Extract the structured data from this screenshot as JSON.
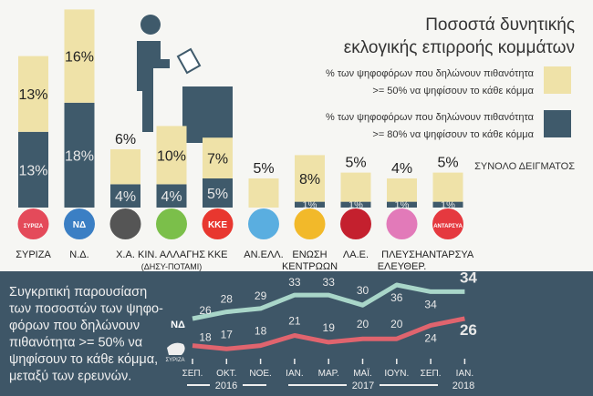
{
  "chart_data": [
    {
      "type": "bar",
      "stacked": true,
      "title": "Ποσοστά δυνητικής εκλογικής επιρροής κομμάτων",
      "subtitle": "ΣΥΝΟΛΟ ΔΕΙΓΜΑΤΟΣ",
      "categories": [
        "ΣΥΡΙΖΑ",
        "Ν.Δ.",
        "Χ.Α.",
        "ΚΙΝ. ΑΛΛΑΓΗΣ",
        "ΚΚΕ",
        "ΑΝ.ΕΛΛ.",
        "ΕΝΩΣΗ",
        "ΛΑ.Ε.",
        "ΠΛΕΥΣΗ",
        "ΑΝΤΑΡΣΥΑ"
      ],
      "category_sublabels": [
        "",
        "",
        "",
        "(ΔΗΣΥ-ΠΟΤΑΜΙ)",
        "",
        "",
        "ΚΕΝΤΡΩΩΝ",
        "",
        "ΕΛΕΥΘΕΡ.",
        ""
      ],
      "logo_text": [
        "ΣΥΡΙΖΑ",
        "ΝΔ",
        "",
        "",
        "ΚΚΕ",
        "",
        "",
        "",
        "",
        "ΑΝΤΑΡΣΥΑ"
      ],
      "logo_colors": [
        "#e44a5a",
        "#3b7fc4",
        "#555555",
        "#7bbf4a",
        "#e8372f",
        "#5aaee0",
        "#f2b92a",
        "#c4202e",
        "#e27ab9",
        "#e5393f"
      ],
      "series": [
        {
          "name": "% των ψηφοφόρων που δηλώνουν πιθανότητα >= 80% να ψηφίσουν το κάθε κόμμα",
          "color": "#3f5a6b",
          "values": [
            13,
            18,
            4,
            4,
            5,
            0,
            1,
            1,
            1,
            1
          ]
        },
        {
          "name": "% των ψηφοφόρων που δηλώνουν πιθανότητα >= 50% να ψηφίσουν το κάθε κόμμα",
          "color": "#efe2a8",
          "values": [
            13,
            16,
            6,
            10,
            7,
            5,
            8,
            5,
            4,
            5
          ]
        }
      ],
      "legend": [
        {
          "line1": "% των ψηφοφόρων που δηλώνουν πιθανότητα",
          "line2": ">= 50% να ψηφίσουν το κάθε κόμμα",
          "color": "#efe2a8"
        },
        {
          "line1": "% των ψηφοφόρων που δηλώνουν πιθανότητα",
          "line2": ">= 80% να ψηφίσουν το κάθε κόμμα",
          "color": "#3f5a6b"
        }
      ],
      "legend_placement": "top-right",
      "unit": "%"
    },
    {
      "type": "line",
      "description_lines": [
        "Συγκριτική παρουσίαση",
        "των ποσοστών των ψηφο-",
        "φόρων που δηλώνουν",
        " πιθανότητα >= 50% να",
        "ψηφίσουν το κάθε κόμμα,",
        "μεταξύ των ερευνών."
      ],
      "x": [
        "ΣΕΠ.",
        "ΟΚΤ.",
        "ΝΟΕ.",
        "ΙΑΝ.",
        "ΜΑΡ.",
        "ΜΑΪ.",
        "ΙΟΥΝ.",
        "ΣΕΠ.",
        "ΙΑΝ."
      ],
      "years": [
        "2016",
        "2017",
        "2018"
      ],
      "series": [
        {
          "name": "ΝΔ",
          "color": "#a9d6c9",
          "values": [
            26,
            28,
            29,
            33,
            33,
            30,
            36,
            34,
            34
          ]
        },
        {
          "name": "ΣΥΡΙΖΑ",
          "color": "#e0646e",
          "values": [
            18,
            17,
            18,
            21,
            19,
            20,
            20,
            24,
            26
          ]
        }
      ]
    }
  ]
}
